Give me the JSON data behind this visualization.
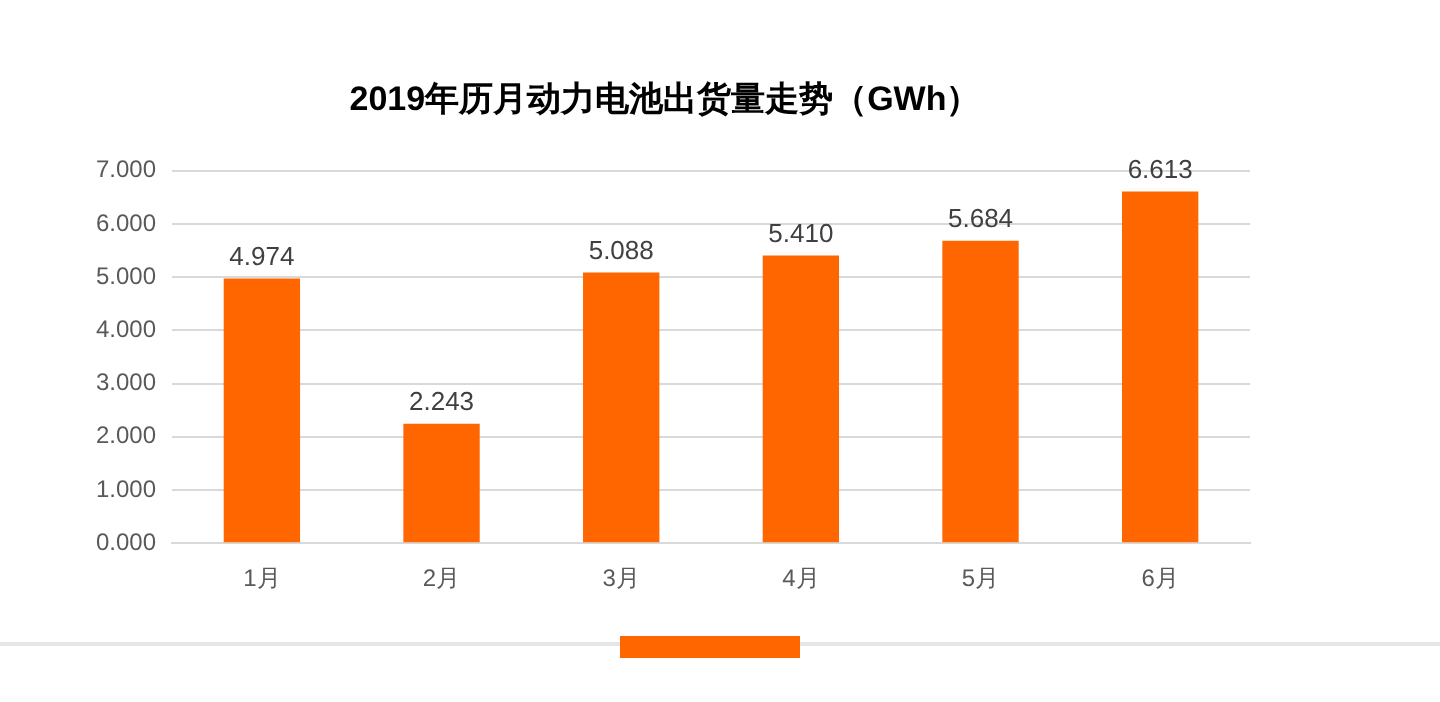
{
  "chart_data": {
    "type": "bar",
    "title": "2019年历月动力电池出货量走势（GWh）",
    "categories": [
      "1月",
      "2月",
      "3月",
      "4月",
      "5月",
      "6月"
    ],
    "values": [
      4.974,
      2.243,
      5.088,
      5.41,
      5.684,
      6.613
    ],
    "value_labels": [
      "4.974",
      "2.243",
      "5.088",
      "5.410",
      "5.684",
      "6.613"
    ],
    "color": "#ff6600",
    "ylim": [
      0,
      7
    ],
    "yticks": [
      {
        "value": 0,
        "label": "0.000"
      },
      {
        "value": 1,
        "label": "1.000"
      },
      {
        "value": 2,
        "label": "2.000"
      },
      {
        "value": 3,
        "label": "3.000"
      },
      {
        "value": 4,
        "label": "4.000"
      },
      {
        "value": 5,
        "label": "5.000"
      },
      {
        "value": 6,
        "label": "6.000"
      },
      {
        "value": 7,
        "label": "7.000"
      }
    ],
    "grid": "y",
    "legend": false
  }
}
